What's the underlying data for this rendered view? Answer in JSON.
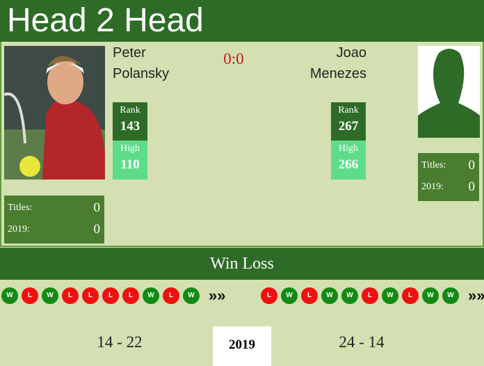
{
  "header": {
    "title": "Head 2 Head"
  },
  "score": "0:0",
  "players": [
    {
      "first_name": "Peter",
      "last_name": "Polansky",
      "rank_label": "Rank",
      "rank": 143,
      "high_label": "High",
      "high": 110,
      "titles_label": "Titles:",
      "titles": 0,
      "year_label": "2019:",
      "year_titles": 0
    },
    {
      "first_name": "Joao",
      "last_name": "Menezes",
      "rank_label": "Rank",
      "rank": 267,
      "high_label": "High",
      "high": 266,
      "titles_label": "Titles:",
      "titles": 0,
      "year_label": "2019:",
      "year_titles": 0
    }
  ],
  "win_loss": {
    "title": "Win Loss",
    "form": [
      [
        "W",
        "L",
        "W",
        "L",
        "L",
        "L",
        "L",
        "W",
        "L",
        "W"
      ],
      [
        "L",
        "W",
        "L",
        "W",
        "W",
        "L",
        "W",
        "L",
        "W",
        "W"
      ]
    ],
    "more": "»»",
    "records": [
      "14 - 22",
      "24 - 14"
    ],
    "year": "2019"
  }
}
